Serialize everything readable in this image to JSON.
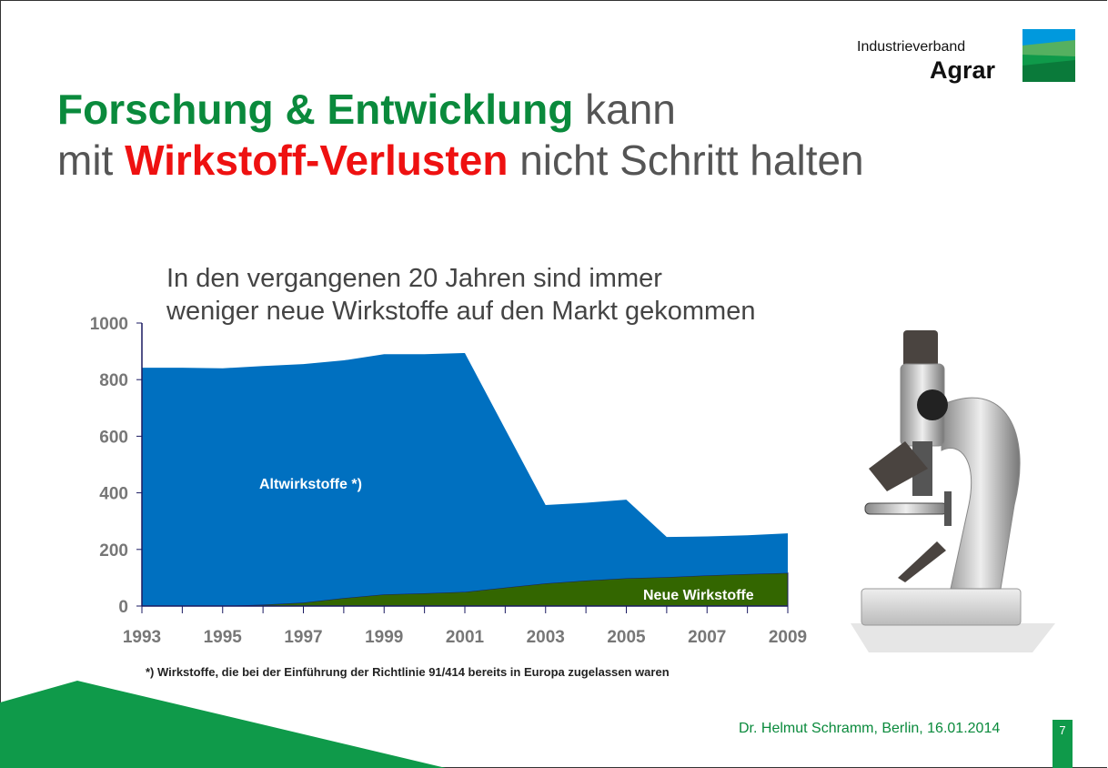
{
  "logo": {
    "line1": "Industrieverband",
    "line2": "Agrar",
    "colors": [
      "#0099dd",
      "#3aaa5a",
      "#0f9a4a",
      "#0a7a3a"
    ]
  },
  "title": {
    "line1_highlight": "Forschung & Entwicklung",
    "line1_rest": " kann",
    "line2_start": "mit ",
    "line2_highlight": "Wirkstoff-Verlusten",
    "line2_rest": " nicht Schritt halten"
  },
  "subtitle": {
    "line1": "In den vergangenen 20 Jahren sind immer",
    "line2": "weniger neue Wirkstoffe auf den Markt gekommen"
  },
  "chart_data": {
    "type": "area",
    "stacked": true,
    "x": [
      1993,
      1994,
      1995,
      1996,
      1997,
      1998,
      1999,
      2000,
      2001,
      2002,
      2003,
      2004,
      2005,
      2006,
      2007,
      2008,
      2009
    ],
    "x_tick_labels": [
      "1993",
      "1995",
      "1997",
      "1999",
      "2001",
      "2003",
      "2005",
      "2007",
      "2009"
    ],
    "y_tick_labels": [
      "0",
      "200",
      "400",
      "600",
      "800",
      "1000"
    ],
    "ylim": [
      0,
      1000
    ],
    "xlim": [
      1993,
      2009
    ],
    "grid": false,
    "series": [
      {
        "name": "Neue Wirkstoffe",
        "color": "#336600",
        "values": [
          0,
          0,
          0,
          5,
          12,
          28,
          41,
          45,
          50,
          65,
          80,
          90,
          98,
          102,
          108,
          113,
          117
        ]
      },
      {
        "name": "Altwirkstoffe *)",
        "color": "#0070c0",
        "values": [
          842,
          842,
          840,
          843,
          843,
          840,
          849,
          845,
          844,
          560,
          277,
          275,
          278,
          142,
          138,
          137,
          140
        ]
      }
    ]
  },
  "footnote": "*) Wirkstoffe, die bei der Einführung der Richtlinie 91/414 bereits in Europa zugelassen waren",
  "footer": {
    "author": "Dr. Helmut Schramm, Berlin, 16.01.2014",
    "page": "7"
  },
  "colors": {
    "accent_green": "#0a8a3c",
    "accent_red": "#ee1111"
  }
}
